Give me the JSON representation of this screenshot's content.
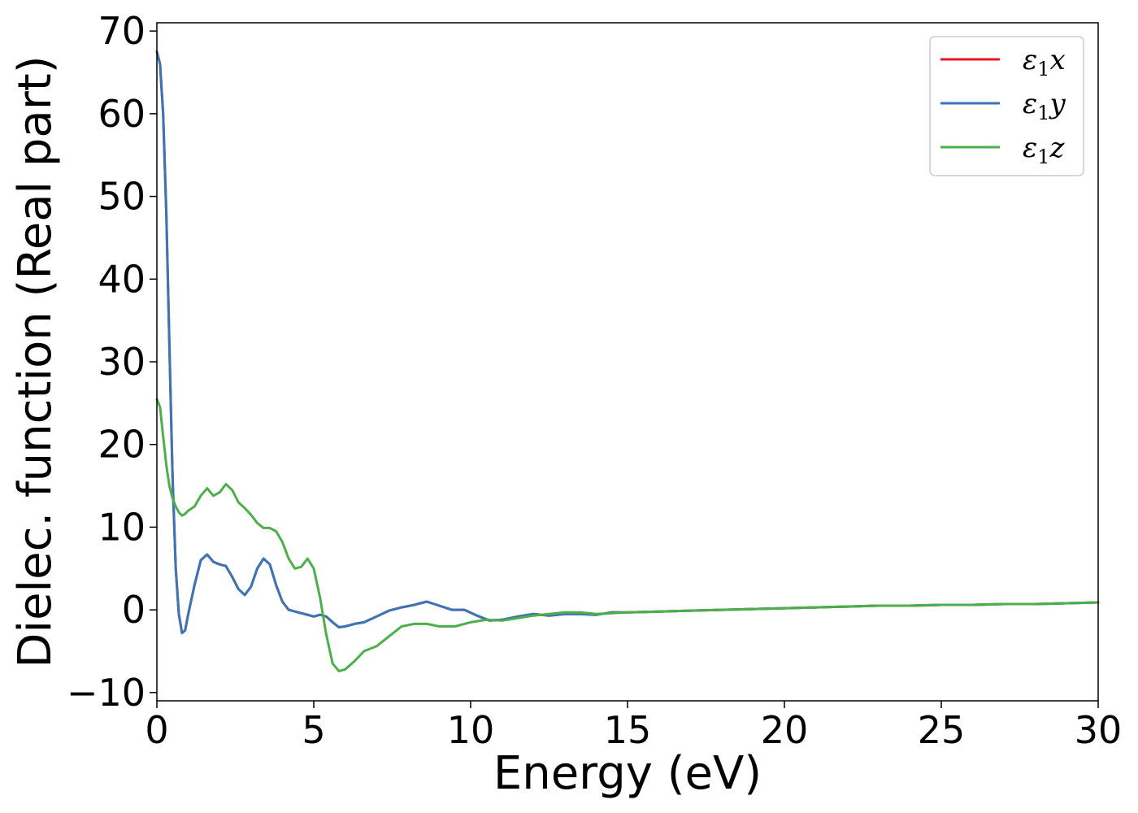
{
  "chart_data": {
    "type": "line",
    "xlabel": "Energy (eV)",
    "ylabel": "Dielec. function (Real part)",
    "xlim": [
      0,
      30
    ],
    "ylim": [
      -11,
      71
    ],
    "xticks": [
      0,
      5,
      10,
      15,
      20,
      25,
      30
    ],
    "xtick_labels": [
      "0",
      "5",
      "10",
      "15",
      "20",
      "25",
      "30"
    ],
    "yticks": [
      -10,
      0,
      10,
      20,
      30,
      40,
      50,
      60,
      70
    ],
    "ytick_labels": [
      "−10",
      "0",
      "10",
      "20",
      "30",
      "40",
      "50",
      "60",
      "70"
    ],
    "grid": false,
    "legend_position": "top-right",
    "series": [
      {
        "name": "ε1x",
        "legend": {
          "base": "ε",
          "sub": "1",
          "var": "x"
        },
        "color": "#e41a1c",
        "x": [
          0,
          0.1,
          0.2,
          0.3,
          0.4,
          0.5,
          0.6,
          0.7,
          0.8,
          0.9,
          1.0,
          1.2,
          1.4,
          1.6,
          1.8,
          2.0,
          2.2,
          2.4,
          2.6,
          2.8,
          3.0,
          3.2,
          3.4,
          3.6,
          3.8,
          4.0,
          4.2,
          4.5,
          4.8,
          5.0,
          5.2,
          5.4,
          5.6,
          5.8,
          6.0,
          6.3,
          6.6,
          7.0,
          7.4,
          7.8,
          8.2,
          8.6,
          9.0,
          9.4,
          9.8,
          10.2,
          10.6,
          11.0,
          11.5,
          12.0,
          12.5,
          13.0,
          13.5,
          14.0,
          14.5,
          15.0,
          16.0,
          17.0,
          18.0,
          19.0,
          20.0,
          21.0,
          22.0,
          23.0,
          24.0,
          25.0,
          26.0,
          27.0,
          28.0,
          29.0,
          30.0
        ],
        "y": [
          67.5,
          66.0,
          60.0,
          48.0,
          32.0,
          16.0,
          5.0,
          -0.5,
          -2.8,
          -2.5,
          -0.5,
          3.0,
          6.0,
          6.7,
          5.8,
          5.5,
          5.3,
          4.0,
          2.5,
          1.8,
          2.8,
          5.0,
          6.2,
          5.5,
          3.0,
          1.0,
          0.0,
          -0.3,
          -0.6,
          -0.8,
          -0.6,
          -0.8,
          -1.5,
          -2.1,
          -2.0,
          -1.7,
          -1.5,
          -0.8,
          -0.1,
          0.3,
          0.6,
          1.0,
          0.5,
          0.0,
          0.0,
          -0.7,
          -1.3,
          -1.2,
          -0.8,
          -0.5,
          -0.7,
          -0.5,
          -0.5,
          -0.6,
          -0.3,
          -0.3,
          -0.2,
          -0.1,
          0.0,
          0.1,
          0.2,
          0.3,
          0.4,
          0.5,
          0.5,
          0.6,
          0.6,
          0.7,
          0.7,
          0.8,
          0.9
        ]
      },
      {
        "name": "ε1y",
        "legend": {
          "base": "ε",
          "sub": "1",
          "var": "y"
        },
        "color": "#3a75b8",
        "x": [
          0,
          0.1,
          0.2,
          0.3,
          0.4,
          0.5,
          0.6,
          0.7,
          0.8,
          0.9,
          1.0,
          1.2,
          1.4,
          1.6,
          1.8,
          2.0,
          2.2,
          2.4,
          2.6,
          2.8,
          3.0,
          3.2,
          3.4,
          3.6,
          3.8,
          4.0,
          4.2,
          4.5,
          4.8,
          5.0,
          5.2,
          5.4,
          5.6,
          5.8,
          6.0,
          6.3,
          6.6,
          7.0,
          7.4,
          7.8,
          8.2,
          8.6,
          9.0,
          9.4,
          9.8,
          10.2,
          10.6,
          11.0,
          11.5,
          12.0,
          12.5,
          13.0,
          13.5,
          14.0,
          14.5,
          15.0,
          16.0,
          17.0,
          18.0,
          19.0,
          20.0,
          21.0,
          22.0,
          23.0,
          24.0,
          25.0,
          26.0,
          27.0,
          28.0,
          29.0,
          30.0
        ],
        "y": [
          67.5,
          66.0,
          60.0,
          48.0,
          32.0,
          16.0,
          5.0,
          -0.5,
          -2.8,
          -2.5,
          -0.5,
          3.0,
          6.0,
          6.7,
          5.8,
          5.5,
          5.3,
          4.0,
          2.5,
          1.8,
          2.8,
          5.0,
          6.2,
          5.5,
          3.0,
          1.0,
          0.0,
          -0.3,
          -0.6,
          -0.8,
          -0.6,
          -0.8,
          -1.5,
          -2.1,
          -2.0,
          -1.7,
          -1.5,
          -0.8,
          -0.1,
          0.3,
          0.6,
          1.0,
          0.5,
          0.0,
          0.0,
          -0.7,
          -1.3,
          -1.2,
          -0.8,
          -0.5,
          -0.7,
          -0.5,
          -0.5,
          -0.6,
          -0.3,
          -0.3,
          -0.2,
          -0.1,
          0.0,
          0.1,
          0.2,
          0.3,
          0.4,
          0.5,
          0.5,
          0.6,
          0.6,
          0.7,
          0.7,
          0.8,
          0.9
        ]
      },
      {
        "name": "ε1z",
        "legend": {
          "base": "ε",
          "sub": "1",
          "var": "z"
        },
        "color": "#4daf4a",
        "x": [
          0,
          0.1,
          0.2,
          0.3,
          0.4,
          0.5,
          0.6,
          0.7,
          0.8,
          0.9,
          1.0,
          1.2,
          1.4,
          1.6,
          1.8,
          2.0,
          2.2,
          2.4,
          2.6,
          2.8,
          3.0,
          3.2,
          3.4,
          3.6,
          3.8,
          4.0,
          4.2,
          4.4,
          4.6,
          4.8,
          5.0,
          5.2,
          5.4,
          5.6,
          5.8,
          6.0,
          6.3,
          6.6,
          7.0,
          7.4,
          7.8,
          8.2,
          8.6,
          9.0,
          9.5,
          10.0,
          10.5,
          11.0,
          11.5,
          12.0,
          12.5,
          13.0,
          13.5,
          14.0,
          14.5,
          15.0,
          16.0,
          17.0,
          18.0,
          19.0,
          20.0,
          21.0,
          22.0,
          23.0,
          24.0,
          25.0,
          26.0,
          27.0,
          28.0,
          29.0,
          30.0
        ],
        "y": [
          25.5,
          24.5,
          21.0,
          17.5,
          15.0,
          13.5,
          12.5,
          11.8,
          11.4,
          11.6,
          12.0,
          12.5,
          13.8,
          14.7,
          13.8,
          14.2,
          15.2,
          14.5,
          13.0,
          12.3,
          11.5,
          10.5,
          9.9,
          9.9,
          9.5,
          8.2,
          6.2,
          5.0,
          5.2,
          6.2,
          5.0,
          1.5,
          -3.0,
          -6.5,
          -7.4,
          -7.2,
          -6.2,
          -5.0,
          -4.4,
          -3.2,
          -2.0,
          -1.7,
          -1.7,
          -2.0,
          -2.0,
          -1.5,
          -1.2,
          -1.3,
          -1.0,
          -0.7,
          -0.5,
          -0.3,
          -0.3,
          -0.5,
          -0.4,
          -0.3,
          -0.2,
          -0.1,
          0.0,
          0.1,
          0.2,
          0.3,
          0.4,
          0.5,
          0.5,
          0.6,
          0.6,
          0.7,
          0.7,
          0.8,
          0.9
        ]
      }
    ]
  }
}
